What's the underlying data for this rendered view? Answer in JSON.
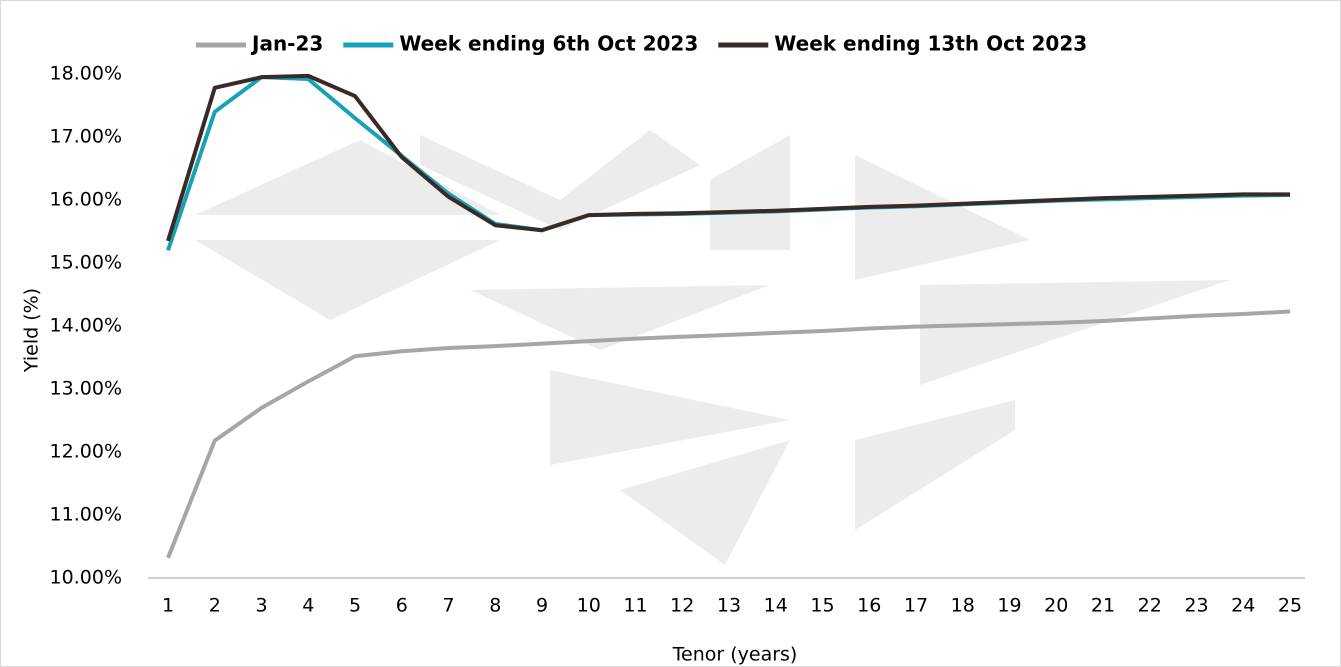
{
  "chart_data": {
    "type": "line",
    "xlabel": "Tenor (years)",
    "ylabel": "Yield (%)",
    "categories": [
      1,
      2,
      3,
      4,
      5,
      6,
      7,
      8,
      9,
      10,
      11,
      12,
      13,
      14,
      15,
      16,
      17,
      18,
      19,
      20,
      21,
      22,
      23,
      24,
      25
    ],
    "series": [
      {
        "name": "Jan-23",
        "color": "#a6a6a6",
        "values": [
          10.32,
          12.18,
          12.7,
          13.12,
          13.52,
          13.6,
          13.65,
          13.68,
          13.72,
          13.76,
          13.8,
          13.83,
          13.86,
          13.89,
          13.92,
          13.96,
          13.99,
          14.01,
          14.03,
          14.05,
          14.08,
          14.12,
          14.16,
          14.19,
          14.23
        ]
      },
      {
        "name": "Week ending 6th Oct 2023",
        "color": "#17a2b8",
        "values": [
          15.2,
          17.4,
          17.95,
          17.92,
          17.3,
          16.7,
          16.1,
          15.62,
          15.52,
          15.76,
          15.77,
          15.78,
          15.8,
          15.82,
          15.85,
          15.88,
          15.9,
          15.93,
          15.96,
          15.99,
          16.01,
          16.03,
          16.05,
          16.07,
          16.08
        ]
      },
      {
        "name": "Week ending 13th Oct 2023",
        "color": "#3a2a26",
        "values": [
          15.35,
          17.78,
          17.95,
          17.97,
          17.65,
          16.68,
          16.05,
          15.6,
          15.52,
          15.76,
          15.78,
          15.79,
          15.81,
          15.83,
          15.86,
          15.89,
          15.91,
          15.94,
          15.97,
          16.0,
          16.03,
          16.05,
          16.07,
          16.09,
          16.09
        ]
      }
    ],
    "ylim": [
      10,
      18
    ],
    "yticks": [
      {
        "value": 10,
        "label": "10.00%"
      },
      {
        "value": 11,
        "label": "11.00%"
      },
      {
        "value": 12,
        "label": "12.00%"
      },
      {
        "value": 13,
        "label": "13.00%"
      },
      {
        "value": 14,
        "label": "14.00%"
      },
      {
        "value": 15,
        "label": "15.00%"
      },
      {
        "value": 16,
        "label": "16.00%"
      },
      {
        "value": 17,
        "label": "17.00%"
      },
      {
        "value": 18,
        "label": "18.00%"
      }
    ],
    "legend": "top"
  }
}
